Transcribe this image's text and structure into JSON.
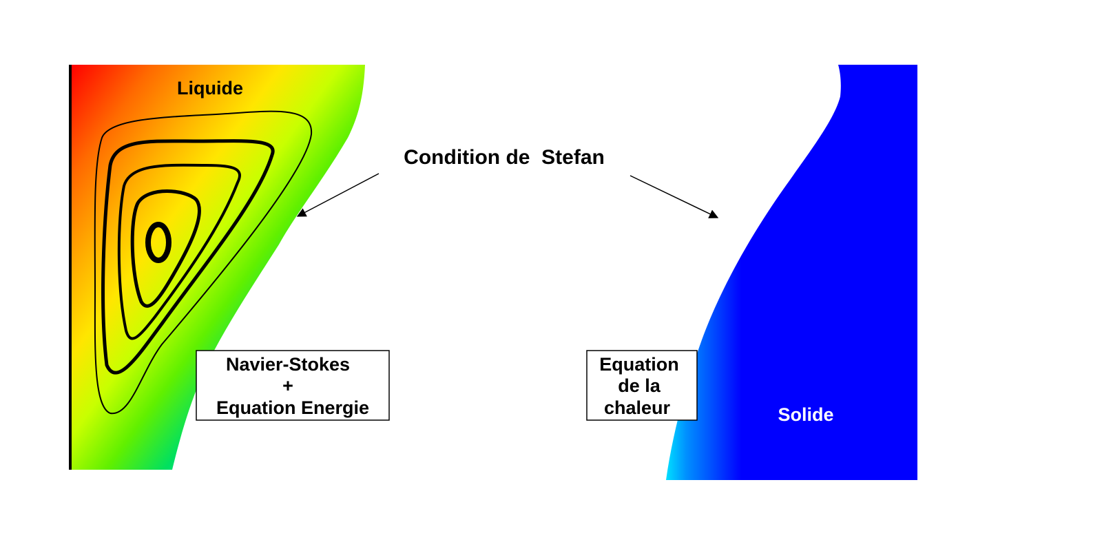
{
  "labels": {
    "liquid": "Liquide",
    "solid": "Solide",
    "stefan": "Condition de  Stefan",
    "liquid_box_line1": "Navier-Stokes",
    "liquid_box_line2": "+",
    "liquid_box_line3": "Equation Energie",
    "solid_box_line1": "Equation",
    "solid_box_line2": "de la",
    "solid_box_line3": "chaleur"
  },
  "colors": {
    "liquid_text": "#000000",
    "solid_text": "#ffffff",
    "solid_fill": "#0000ff",
    "wall": "#000000"
  }
}
